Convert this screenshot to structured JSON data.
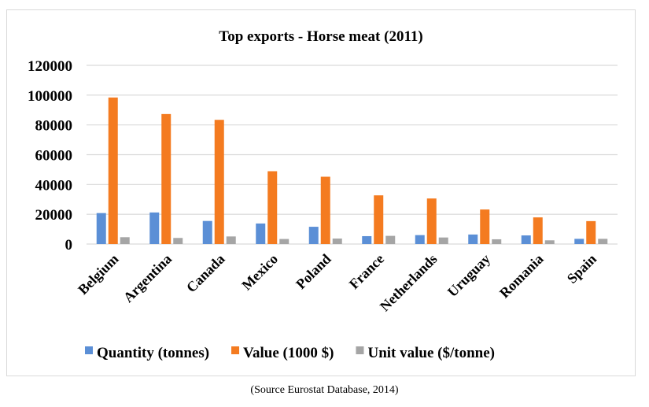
{
  "chart_data": {
    "type": "bar",
    "title": "Top exports - Horse meat (2011)",
    "categories": [
      "Belgium",
      "Argentina",
      "Canada",
      "Mexico",
      "Poland",
      "France",
      "Netherlands",
      "Uruguay",
      "Romania",
      "Spain"
    ],
    "series": [
      {
        "name": "Quantity (tonnes)",
        "color": "#5b8fd6",
        "values": [
          20800,
          21200,
          15500,
          13800,
          11600,
          5300,
          6000,
          6400,
          5800,
          3500
        ]
      },
      {
        "name": "Value (1000 $)",
        "color": "#f47b20",
        "values": [
          98400,
          87300,
          83400,
          48900,
          45200,
          32700,
          30600,
          23200,
          17900,
          15400
        ]
      },
      {
        "name": "Unit value ($/tonne)",
        "color": "#a5a5a5",
        "values": [
          4600,
          4100,
          5100,
          3400,
          3700,
          5500,
          4400,
          3200,
          2500,
          3500
        ]
      }
    ],
    "yticks": [
      "0",
      "20000",
      "40000",
      "60000",
      "80000",
      "100000",
      "120000"
    ],
    "ylim": [
      0,
      120000
    ],
    "grid": true,
    "legend": "bottom",
    "xlabel": "",
    "ylabel": ""
  },
  "caption": "(Source Eurostat Database, 2014)"
}
